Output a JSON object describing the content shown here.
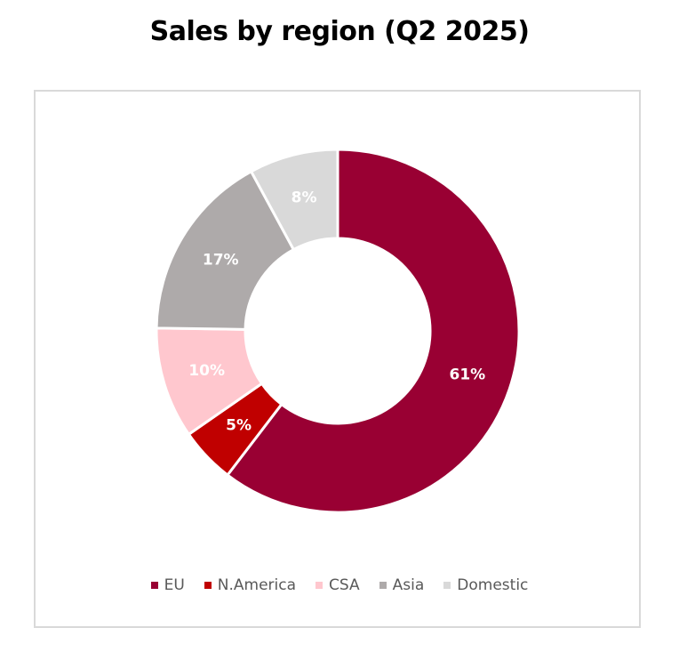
{
  "chart_data": {
    "type": "pie",
    "title": "Sales by region (Q2 2025)",
    "donut": true,
    "legend_position": "bottom",
    "categories": [
      "EU",
      "N.America",
      "CSA",
      "Asia",
      "Domestic"
    ],
    "values": [
      61,
      5,
      10,
      17,
      8
    ],
    "labels": [
      "61%",
      "5%",
      "10%",
      "17%",
      "8%"
    ],
    "colors": [
      "#990033",
      "#c00000",
      "#ffc7ce",
      "#aeaaaa",
      "#d9d9d9"
    ]
  }
}
